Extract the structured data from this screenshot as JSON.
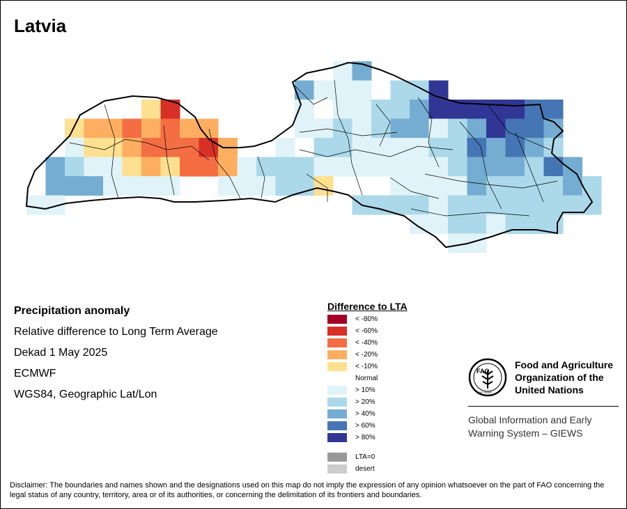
{
  "map": {
    "title": "Latvia",
    "info_lines": [
      "Precipitation anomaly",
      "Relative difference to Long Term Average",
      "Dekad 1 May 2025",
      "ECMWF",
      "WGS84, Geographic Lat/Lon"
    ]
  },
  "legend": {
    "title": "Difference to LTA",
    "items": [
      {
        "label": "< -80%",
        "color": "#a50026"
      },
      {
        "label": "< -60%",
        "color": "#d73027"
      },
      {
        "label": "< -40%",
        "color": "#f46d43"
      },
      {
        "label": "< -20%",
        "color": "#fdae61"
      },
      {
        "label": "< -10%",
        "color": "#fee090"
      },
      {
        "label": "Normal",
        "color": ""
      },
      {
        "label": "> 10%",
        "color": "#e0f3f8"
      },
      {
        "label": "> 20%",
        "color": "#abd9e9"
      },
      {
        "label": "> 40%",
        "color": "#74add1"
      },
      {
        "label": "> 60%",
        "color": "#4575b4"
      },
      {
        "label": "> 80%",
        "color": "#313695"
      }
    ],
    "extra_items": [
      {
        "label": "LTA=0",
        "color": "#999999"
      },
      {
        "label": "desert",
        "color": "#cccccc"
      }
    ]
  },
  "organization": {
    "logo_text": "FAO",
    "logo_motto": "FIAT PANIS",
    "name_lines": [
      "Food and Agriculture",
      "Organization of the",
      "United Nations"
    ],
    "system_lines": [
      "Global Information and Early",
      "Warning System – GIEWS"
    ]
  },
  "disclaimer": "Disclaimer: The boundaries and names shown and the designations used on this map do not imply the expression of any opinion whatsoever on the part of FAO concerning the legal status of any country, territory, area or of its authorities, or concerning the delimitation of its frontiers and boundaries."
}
